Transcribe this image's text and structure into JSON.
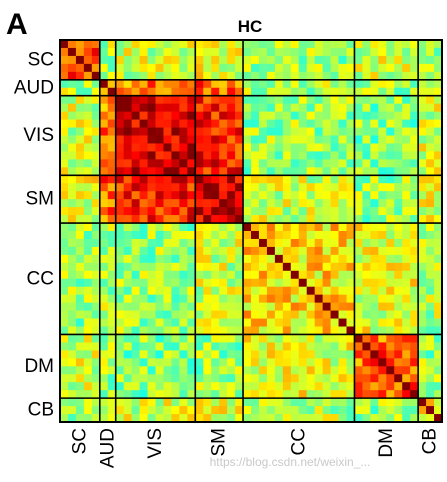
{
  "panel_letter": "A",
  "watermark": "https://blog.csdn.net/weixin_...",
  "chart_data": {
    "type": "heatmap",
    "title": "HC",
    "xlabel": "",
    "ylabel": "",
    "n": 48,
    "colormap": "jet",
    "clim": [
      -1,
      1
    ],
    "modules": [
      {
        "name": "SC",
        "start": 0,
        "end": 5
      },
      {
        "name": "AUD",
        "start": 5,
        "end": 7
      },
      {
        "name": "VIS",
        "start": 7,
        "end": 17
      },
      {
        "name": "SM",
        "start": 17,
        "end": 23
      },
      {
        "name": "CC",
        "start": 23,
        "end": 37
      },
      {
        "name": "DM",
        "start": 37,
        "end": 45
      },
      {
        "name": "CB",
        "start": 45,
        "end": 48
      }
    ],
    "module_means": [
      [
        0.65,
        0.1,
        0.15,
        0.2,
        0.05,
        0.15,
        0.1
      ],
      [
        0.1,
        0.55,
        0.5,
        0.55,
        0.1,
        0.05,
        0.15
      ],
      [
        0.15,
        0.5,
        0.85,
        0.7,
        0.05,
        0.0,
        0.15
      ],
      [
        0.2,
        0.55,
        0.7,
        0.85,
        0.15,
        0.05,
        0.2
      ],
      [
        0.05,
        0.1,
        0.05,
        0.15,
        0.3,
        0.2,
        0.1
      ],
      [
        0.15,
        0.05,
        0.0,
        0.05,
        0.2,
        0.55,
        0.05
      ],
      [
        0.1,
        0.15,
        0.15,
        0.2,
        0.1,
        0.05,
        0.35
      ]
    ]
  }
}
